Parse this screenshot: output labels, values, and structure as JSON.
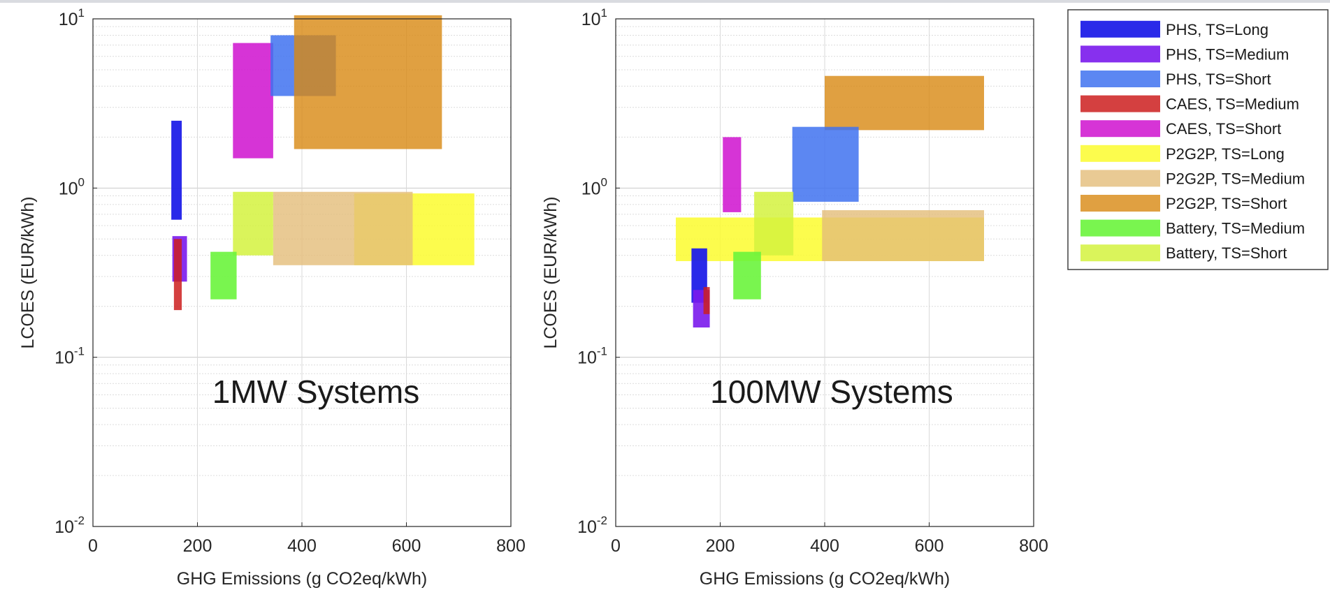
{
  "chart_data": [
    {
      "type": "area",
      "annotation": "1MW Systems",
      "xlabel": "GHG Emissions (g CO2eq/kWh)",
      "ylabel": "LCOES (EUR/kWh)",
      "xlim": [
        0,
        800
      ],
      "ylim": [
        0.01,
        10
      ],
      "yscale": "log",
      "xticks": [
        0,
        200,
        400,
        600,
        800
      ],
      "yticks": [
        0.01,
        0.1,
        1,
        10
      ],
      "ytick_labels": [
        {
          "base": "10",
          "exp": "-2"
        },
        {
          "base": "10",
          "exp": "-1"
        },
        {
          "base": "10",
          "exp": "0"
        },
        {
          "base": "10",
          "exp": "1"
        }
      ],
      "grid": true,
      "series": [
        {
          "name": "P2G2P, TS=Long",
          "x": [
            500,
            730
          ],
          "y": [
            0.35,
            0.93
          ]
        },
        {
          "name": "P2G2P, TS=Medium",
          "x": [
            345,
            612
          ],
          "y": [
            0.35,
            0.95
          ]
        },
        {
          "name": "Battery, TS=Short",
          "x": [
            268,
            345
          ],
          "y": [
            0.4,
            0.95
          ]
        },
        {
          "name": "Battery, TS=Medium",
          "x": [
            225,
            275
          ],
          "y": [
            0.22,
            0.42
          ]
        },
        {
          "name": "PHS, TS=Long",
          "x": [
            150,
            170
          ],
          "y": [
            0.65,
            2.5
          ]
        },
        {
          "name": "PHS, TS=Medium",
          "x": [
            152,
            180
          ],
          "y": [
            0.28,
            0.52
          ]
        },
        {
          "name": "CAES, TS=Medium",
          "x": [
            155,
            170
          ],
          "y": [
            0.19,
            0.5
          ]
        },
        {
          "name": "CAES, TS=Short",
          "x": [
            268,
            345
          ],
          "y": [
            1.5,
            7.2
          ]
        },
        {
          "name": "PHS, TS=Short",
          "x": [
            340,
            465
          ],
          "y": [
            3.5,
            8.0
          ]
        },
        {
          "name": "P2G2P, TS=Short",
          "x": [
            385,
            668
          ],
          "y": [
            1.7,
            10.5
          ]
        }
      ]
    },
    {
      "type": "area",
      "annotation": "100MW Systems",
      "xlabel": "GHG Emissions (g CO2eq/kWh)",
      "ylabel": "LCOES (EUR/kWh)",
      "xlim": [
        0,
        800
      ],
      "ylim": [
        0.01,
        10
      ],
      "yscale": "log",
      "xticks": [
        0,
        200,
        400,
        600,
        800
      ],
      "yticks": [
        0.01,
        0.1,
        1,
        10
      ],
      "ytick_labels": [
        {
          "base": "10",
          "exp": "-2"
        },
        {
          "base": "10",
          "exp": "-1"
        },
        {
          "base": "10",
          "exp": "0"
        },
        {
          "base": "10",
          "exp": "1"
        }
      ],
      "grid": true,
      "series": [
        {
          "name": "P2G2P, TS=Long",
          "x": [
            115,
            705
          ],
          "y": [
            0.37,
            0.67
          ]
        },
        {
          "name": "P2G2P, TS=Medium",
          "x": [
            395,
            705
          ],
          "y": [
            0.37,
            0.74
          ]
        },
        {
          "name": "P2G2P, TS=Short",
          "x": [
            400,
            705
          ],
          "y": [
            2.2,
            4.6
          ]
        },
        {
          "name": "PHS, TS=Short",
          "x": [
            338,
            465
          ],
          "y": [
            0.83,
            2.3
          ]
        },
        {
          "name": "Battery, TS=Short",
          "x": [
            265,
            340
          ],
          "y": [
            0.4,
            0.95
          ]
        },
        {
          "name": "Battery, TS=Medium",
          "x": [
            225,
            278
          ],
          "y": [
            0.22,
            0.42
          ]
        },
        {
          "name": "CAES, TS=Short",
          "x": [
            205,
            240
          ],
          "y": [
            0.72,
            2.0
          ]
        },
        {
          "name": "PHS, TS=Long",
          "x": [
            145,
            175
          ],
          "y": [
            0.21,
            0.44
          ]
        },
        {
          "name": "PHS, TS=Medium",
          "x": [
            148,
            180
          ],
          "y": [
            0.15,
            0.25
          ]
        },
        {
          "name": "CAES, TS=Medium",
          "x": [
            168,
            180
          ],
          "y": [
            0.18,
            0.26
          ]
        }
      ]
    }
  ],
  "legend": {
    "placement": "right",
    "items": [
      {
        "name": "PHS, TS=Long",
        "color": "#1f1fe8",
        "opacity": 0.95
      },
      {
        "name": "PHS, TS=Medium",
        "color": "#7a1aec",
        "opacity": 0.9
      },
      {
        "name": "PHS, TS=Short",
        "color": "#3f72f0",
        "opacity": 0.85
      },
      {
        "name": "CAES, TS=Medium",
        "color": "#cc1f1f",
        "opacity": 0.85
      },
      {
        "name": "CAES, TS=Short",
        "color": "#d21ed2",
        "opacity": 0.9
      },
      {
        "name": "P2G2P, TS=Long",
        "color": "#fbfb2e",
        "opacity": 0.85
      },
      {
        "name": "P2G2P, TS=Medium",
        "color": "#e4bd79",
        "opacity": 0.8
      },
      {
        "name": "P2G2P, TS=Short",
        "color": "#d88812",
        "opacity": 0.8
      },
      {
        "name": "Battery, TS=Medium",
        "color": "#6af43c",
        "opacity": 0.9
      },
      {
        "name": "Battery, TS=Short",
        "color": "#d4f23e",
        "opacity": 0.85
      }
    ]
  }
}
